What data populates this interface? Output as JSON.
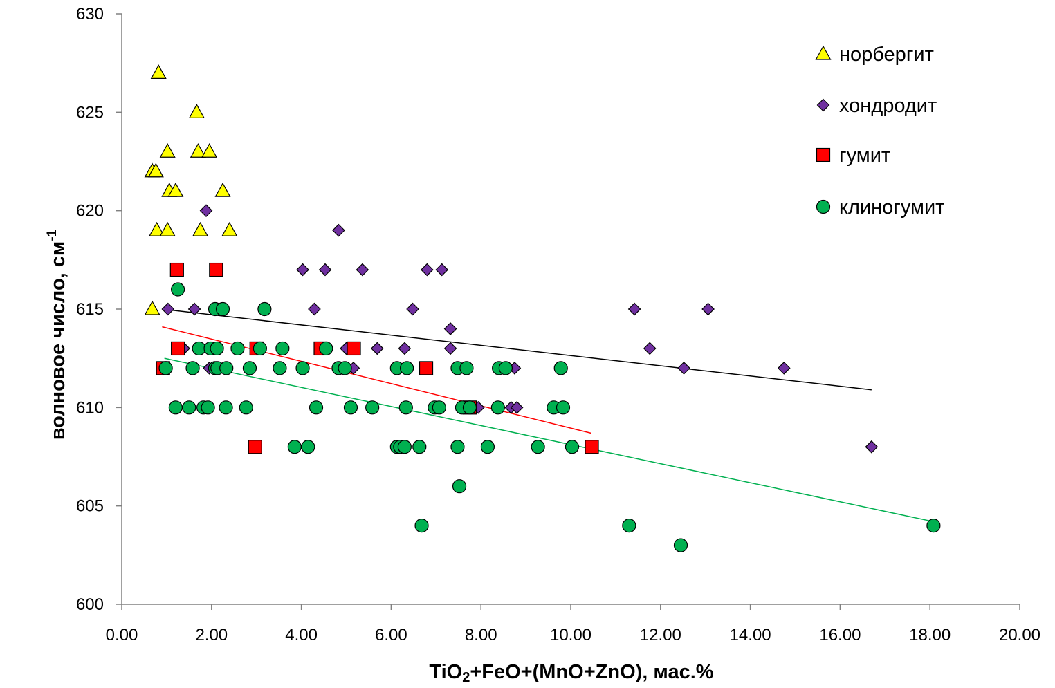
{
  "chart_data": {
    "type": "scatter",
    "xlabel_parts": [
      "TiO",
      "2",
      "+FeO+(MnO+ZnO), мас.%"
    ],
    "ylabel_parts": [
      "волновое число, см",
      "-1"
    ],
    "xlim": [
      0,
      20
    ],
    "ylim": [
      600,
      630
    ],
    "x_ticks": [
      0,
      2,
      4,
      6,
      8,
      10,
      12,
      14,
      16,
      18,
      20
    ],
    "x_tick_labels": [
      "0.00",
      "2.00",
      "4.00",
      "6.00",
      "8.00",
      "10.00",
      "12.00",
      "14.00",
      "16.00",
      "18.00",
      "20.00"
    ],
    "y_ticks": [
      600,
      605,
      610,
      615,
      620,
      625,
      630
    ],
    "y_tick_labels": [
      "600",
      "605",
      "610",
      "615",
      "620",
      "625",
      "630"
    ],
    "grid": false,
    "legend_position": "top-right",
    "series": [
      {
        "name": "норбергит",
        "marker": "triangle",
        "color": "#FFFF00",
        "points": [
          [
            0.82,
            627
          ],
          [
            1.67,
            625
          ],
          [
            1.02,
            623
          ],
          [
            1.7,
            623
          ],
          [
            1.95,
            623
          ],
          [
            0.68,
            622
          ],
          [
            0.76,
            622
          ],
          [
            1.06,
            621
          ],
          [
            1.2,
            621
          ],
          [
            2.25,
            621
          ],
          [
            0.78,
            619
          ],
          [
            1.02,
            619
          ],
          [
            1.75,
            619
          ],
          [
            2.4,
            619
          ],
          [
            0.68,
            615
          ]
        ]
      },
      {
        "name": "хондродит",
        "marker": "diamond",
        "color": "#7030A0",
        "points": [
          [
            1.88,
            620
          ],
          [
            4.83,
            619
          ],
          [
            4.03,
            617
          ],
          [
            4.53,
            617
          ],
          [
            5.36,
            617
          ],
          [
            6.8,
            617
          ],
          [
            7.13,
            617
          ],
          [
            1.03,
            615
          ],
          [
            1.62,
            615
          ],
          [
            4.29,
            615
          ],
          [
            6.48,
            615
          ],
          [
            11.42,
            615
          ],
          [
            13.06,
            615
          ],
          [
            7.32,
            614
          ],
          [
            1.38,
            613
          ],
          [
            5.0,
            613
          ],
          [
            5.69,
            613
          ],
          [
            6.3,
            613
          ],
          [
            7.32,
            613
          ],
          [
            11.76,
            613
          ],
          [
            1.95,
            612
          ],
          [
            5.16,
            612
          ],
          [
            8.75,
            612
          ],
          [
            12.52,
            612
          ],
          [
            14.75,
            612
          ],
          [
            7.94,
            610
          ],
          [
            8.67,
            610
          ],
          [
            8.8,
            610
          ],
          [
            16.7,
            608
          ]
        ]
      },
      {
        "name": "гумит",
        "marker": "square",
        "color": "#FF0000",
        "points": [
          [
            1.23,
            617
          ],
          [
            2.1,
            617
          ],
          [
            1.25,
            613
          ],
          [
            3.0,
            613
          ],
          [
            4.43,
            613
          ],
          [
            5.17,
            613
          ],
          [
            0.92,
            612
          ],
          [
            6.78,
            612
          ],
          [
            7.75,
            610
          ],
          [
            2.97,
            608
          ],
          [
            10.47,
            608
          ]
        ]
      },
      {
        "name": "клиногумит",
        "marker": "circle",
        "color": "#00B050",
        "points": [
          [
            1.25,
            616
          ],
          [
            2.08,
            615
          ],
          [
            2.25,
            615
          ],
          [
            3.18,
            615
          ],
          [
            1.72,
            613
          ],
          [
            1.98,
            613
          ],
          [
            2.12,
            613
          ],
          [
            2.58,
            613
          ],
          [
            3.08,
            613
          ],
          [
            3.58,
            613
          ],
          [
            4.55,
            613
          ],
          [
            0.98,
            612
          ],
          [
            1.58,
            612
          ],
          [
            2.08,
            612
          ],
          [
            2.13,
            612
          ],
          [
            2.33,
            612
          ],
          [
            2.85,
            612
          ],
          [
            3.52,
            612
          ],
          [
            4.03,
            612
          ],
          [
            4.83,
            612
          ],
          [
            4.97,
            612
          ],
          [
            6.13,
            612
          ],
          [
            6.35,
            612
          ],
          [
            7.48,
            612
          ],
          [
            7.68,
            612
          ],
          [
            8.4,
            612
          ],
          [
            8.55,
            612
          ],
          [
            9.78,
            612
          ],
          [
            1.2,
            610
          ],
          [
            1.5,
            610
          ],
          [
            1.82,
            610
          ],
          [
            1.92,
            610
          ],
          [
            2.32,
            610
          ],
          [
            2.77,
            610
          ],
          [
            4.33,
            610
          ],
          [
            5.1,
            610
          ],
          [
            5.58,
            610
          ],
          [
            6.33,
            610
          ],
          [
            6.97,
            610
          ],
          [
            7.07,
            610
          ],
          [
            7.58,
            610
          ],
          [
            7.75,
            610
          ],
          [
            8.38,
            610
          ],
          [
            9.62,
            610
          ],
          [
            9.83,
            610
          ],
          [
            3.85,
            608
          ],
          [
            4.15,
            608
          ],
          [
            6.13,
            608
          ],
          [
            6.2,
            608
          ],
          [
            6.3,
            608
          ],
          [
            6.63,
            608
          ],
          [
            7.48,
            608
          ],
          [
            8.15,
            608
          ],
          [
            9.27,
            608
          ],
          [
            10.03,
            608
          ],
          [
            7.52,
            606
          ],
          [
            6.68,
            604
          ],
          [
            11.3,
            604
          ],
          [
            18.08,
            604
          ],
          [
            12.45,
            603
          ]
        ]
      }
    ],
    "trendlines": [
      {
        "series": "хондродит",
        "color": "#000000",
        "x": [
          0.9,
          16.7
        ],
        "y": [
          615.0,
          610.9
        ]
      },
      {
        "series": "гумит",
        "color": "#FF0000",
        "x": [
          0.9,
          10.45
        ],
        "y": [
          614.1,
          608.7
        ]
      },
      {
        "series": "клиногумит",
        "color": "#00B050",
        "x": [
          0.95,
          18.08
        ],
        "y": [
          612.5,
          604.2
        ]
      }
    ]
  }
}
